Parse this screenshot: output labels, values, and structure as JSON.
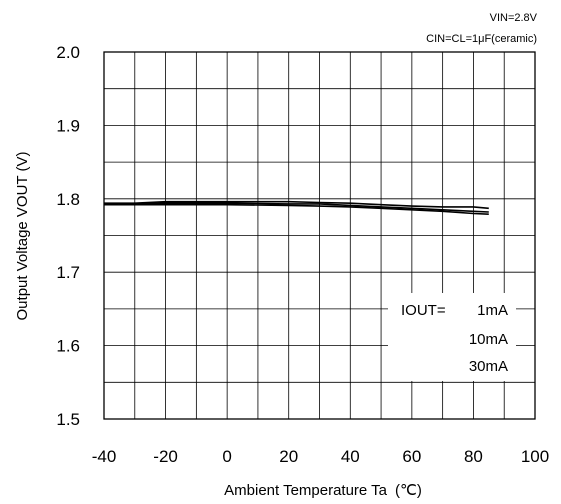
{
  "chart_data": {
    "type": "line",
    "title": "",
    "conditions": [
      "VIN=2.8V",
      "CIN=CL=1μF(ceramic)"
    ],
    "xlabel": "Ambient Temperature Ta",
    "xunit": "(℃)",
    "ylabel": "Output Voltage  VOUT  (V)",
    "xlim": [
      -40,
      100
    ],
    "ylim": [
      1.5,
      2.0
    ],
    "xticks": [
      "-40",
      "-20",
      "0",
      "20",
      "40",
      "60",
      "80",
      "100"
    ],
    "yticks": [
      "1.5",
      "1.6",
      "1.7",
      "1.8",
      "1.9",
      "2.0"
    ],
    "grid": true,
    "legend_prefix": "IOUT=",
    "legend_position": "bottom-right",
    "series": [
      {
        "name": "1mA",
        "x": [
          -40,
          -30,
          -20,
          0,
          20,
          30,
          40,
          50,
          60,
          70,
          80,
          85
        ],
        "y": [
          1.794,
          1.794,
          1.796,
          1.796,
          1.796,
          1.795,
          1.794,
          1.792,
          1.79,
          1.789,
          1.789,
          1.787
        ]
      },
      {
        "name": "10mA",
        "x": [
          -40,
          -30,
          -20,
          0,
          20,
          30,
          40,
          50,
          60,
          70,
          80,
          85
        ],
        "y": [
          1.793,
          1.793,
          1.794,
          1.794,
          1.793,
          1.793,
          1.791,
          1.789,
          1.787,
          1.785,
          1.783,
          1.782
        ]
      },
      {
        "name": "30mA",
        "x": [
          -40,
          -30,
          -20,
          0,
          20,
          30,
          40,
          50,
          60,
          70,
          80,
          85
        ],
        "y": [
          1.792,
          1.792,
          1.792,
          1.792,
          1.791,
          1.79,
          1.789,
          1.787,
          1.785,
          1.783,
          1.78,
          1.779
        ]
      }
    ]
  }
}
